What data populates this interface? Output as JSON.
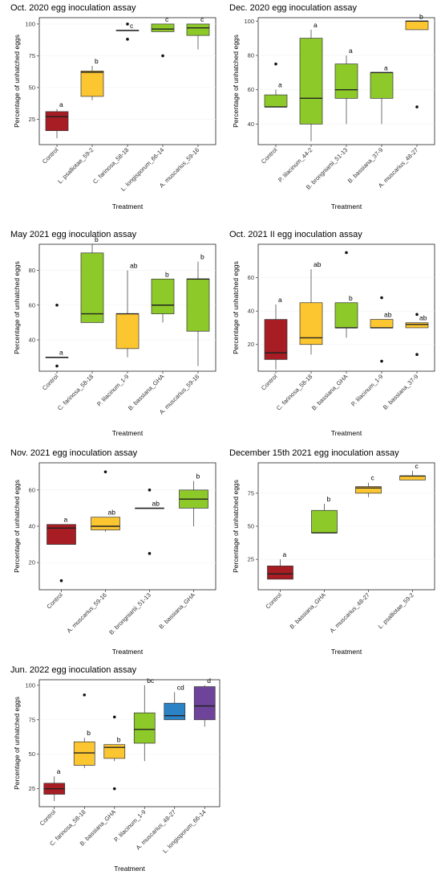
{
  "colors": {
    "red": "#a81d24",
    "yellow": "#fcc630",
    "green": "#8ec92a",
    "blue": "#2b83c6",
    "purple": "#6e449a"
  },
  "chart_data": [
    {
      "type": "boxplot",
      "title": "Oct. 2020 egg inoculation assay",
      "xlabel": "Treatment",
      "ylabel": "Percentage of unhatched eggs",
      "ylim": [
        5,
        105
      ],
      "yticks": [
        25,
        50,
        75,
        100
      ],
      "categories": [
        "Control",
        "L. psalliotae_59-2",
        "C. farinosa_58-18",
        "L. longisporum_66-14",
        "A. muscarius_59-16"
      ],
      "boxes": [
        {
          "min": 10,
          "q1": 16,
          "median": 27,
          "q3": 31,
          "max": 33,
          "outliers": [],
          "color": "red",
          "letter": "a"
        },
        {
          "min": 40,
          "q1": 43,
          "median": 62,
          "q3": 63,
          "max": 67,
          "outliers": [],
          "color": "yellow",
          "letter": "b"
        },
        {
          "min": 95,
          "q1": 95,
          "median": 95,
          "q3": 95,
          "max": 95,
          "outliers": [
            100,
            88
          ],
          "color": "yellow",
          "letter": "c"
        },
        {
          "min": 94,
          "q1": 94,
          "median": 96,
          "q3": 100,
          "max": 100,
          "outliers": [
            75
          ],
          "color": "green",
          "letter": "c"
        },
        {
          "min": 80,
          "q1": 91,
          "median": 97,
          "q3": 100,
          "max": 100,
          "outliers": [],
          "color": "green",
          "letter": "c"
        }
      ]
    },
    {
      "type": "boxplot",
      "title": "Dec. 2020 egg inoculation assay",
      "xlabel": "Treatment",
      "ylabel": "Percentage of unhatched eggs",
      "ylim": [
        28,
        102
      ],
      "yticks": [
        40,
        60,
        80,
        100
      ],
      "categories": [
        "Control",
        "P. lilacinum_44-2",
        "B. brongniartii_51-13",
        "B. bassiana_37-9",
        "A. muscarius_48-27"
      ],
      "boxes": [
        {
          "min": 50,
          "q1": 50,
          "median": 50,
          "q3": 57,
          "max": 60,
          "outliers": [
            75
          ],
          "color": "green",
          "letter": "a"
        },
        {
          "min": 30,
          "q1": 40,
          "median": 55,
          "q3": 90,
          "max": 95,
          "outliers": [],
          "color": "green",
          "letter": "a"
        },
        {
          "min": 40,
          "q1": 55,
          "median": 60,
          "q3": 75,
          "max": 80,
          "outliers": [],
          "color": "green",
          "letter": "a"
        },
        {
          "min": 40,
          "q1": 55,
          "median": 70,
          "q3": 70,
          "max": 70,
          "outliers": [],
          "color": "green",
          "letter": "a"
        },
        {
          "min": 95,
          "q1": 95,
          "median": 100,
          "q3": 100,
          "max": 100,
          "outliers": [
            50
          ],
          "color": "yellow",
          "letter": "b"
        }
      ]
    },
    {
      "type": "boxplot",
      "title": "May 2021 egg inoculation assay",
      "xlabel": "Treatment",
      "ylabel": "Percentage of unhatched eggs",
      "ylim": [
        22,
        95
      ],
      "yticks": [
        40,
        60,
        80
      ],
      "categories": [
        "Control",
        "C. farinosa_58-18",
        "P. lilacinum_1-9",
        "B. bassiana_GHA",
        "A. muscarius_59-16"
      ],
      "boxes": [
        {
          "min": 30,
          "q1": 30,
          "median": 30,
          "q3": 30,
          "max": 30,
          "outliers": [
            60,
            25
          ],
          "color": "red",
          "letter": "a"
        },
        {
          "min": 50,
          "q1": 50,
          "median": 55,
          "q3": 90,
          "max": 95,
          "outliers": [],
          "color": "green",
          "letter": "b"
        },
        {
          "min": 30,
          "q1": 35,
          "median": 55,
          "q3": 55,
          "max": 80,
          "outliers": [],
          "color": "yellow",
          "letter": "ab"
        },
        {
          "min": 50,
          "q1": 55,
          "median": 60,
          "q3": 75,
          "max": 75,
          "outliers": [],
          "color": "green",
          "letter": "b"
        },
        {
          "min": 25,
          "q1": 45,
          "median": 75,
          "q3": 75,
          "max": 85,
          "outliers": [],
          "color": "green",
          "letter": "b"
        }
      ]
    },
    {
      "type": "boxplot",
      "title": "Oct. 2021 II egg inoculation assay",
      "xlabel": "Treatment",
      "ylabel": "Percentage of unhatched eggs",
      "ylim": [
        4,
        80
      ],
      "yticks": [
        20,
        40,
        60
      ],
      "categories": [
        "Control",
        "C. farinosa_58-18",
        "B. bassiana_GHA",
        "P. lilacinum_1-9",
        "B. bassiana_37-9"
      ],
      "boxes": [
        {
          "min": 5,
          "q1": 11,
          "median": 15,
          "q3": 35,
          "max": 44,
          "outliers": [],
          "color": "red",
          "letter": "a"
        },
        {
          "min": 14,
          "q1": 20,
          "median": 24,
          "q3": 45,
          "max": 65,
          "outliers": [],
          "color": "yellow",
          "letter": "ab"
        },
        {
          "min": 24,
          "q1": 30,
          "median": 30,
          "q3": 45,
          "max": 45,
          "outliers": [
            75
          ],
          "color": "green",
          "letter": "b"
        },
        {
          "min": 30,
          "q1": 30,
          "median": 30,
          "q3": 35,
          "max": 35,
          "outliers": [
            48,
            10
          ],
          "color": "yellow",
          "letter": "ab"
        },
        {
          "min": 30,
          "q1": 30,
          "median": 32,
          "q3": 33,
          "max": 33,
          "outliers": [
            38,
            14
          ],
          "color": "yellow",
          "letter": "ab"
        }
      ]
    },
    {
      "type": "boxplot",
      "title": "Nov. 2021 egg inoculation assay",
      "xlabel": "Treatment",
      "ylabel": "Percentage of unhatched eggs",
      "ylim": [
        5,
        75
      ],
      "yticks": [
        20,
        40,
        60
      ],
      "categories": [
        "Control",
        "A. muscarius_59-16",
        "B. brongniartii_51-13",
        "B. bassiana_GHA"
      ],
      "boxes": [
        {
          "min": 30,
          "q1": 30,
          "median": 39,
          "q3": 41,
          "max": 41,
          "outliers": [
            10
          ],
          "color": "red",
          "letter": "a"
        },
        {
          "min": 37,
          "q1": 38,
          "median": 40,
          "q3": 45,
          "max": 45,
          "outliers": [
            70
          ],
          "color": "yellow",
          "letter": "ab"
        },
        {
          "min": 50,
          "q1": 50,
          "median": 50,
          "q3": 50,
          "max": 50,
          "outliers": [
            60,
            25
          ],
          "color": "yellow",
          "letter": "ab"
        },
        {
          "min": 40,
          "q1": 50,
          "median": 55,
          "q3": 60,
          "max": 65,
          "outliers": [],
          "color": "green",
          "letter": "b"
        }
      ]
    },
    {
      "type": "boxplot",
      "title": "December 15th 2021 egg inoculation assay",
      "xlabel": "Treatment",
      "ylabel": "Percentage of unhatched eggs",
      "ylim": [
        2,
        98
      ],
      "yticks": [
        25,
        50,
        75
      ],
      "categories": [
        "Control",
        "B. bassiana_GHA",
        "A. muscarius_48-27",
        "L. psalliotae_59-2"
      ],
      "boxes": [
        {
          "min": 10,
          "q1": 10,
          "median": 14,
          "q3": 20,
          "max": 25,
          "outliers": [],
          "color": "red",
          "letter": "a"
        },
        {
          "min": 45,
          "q1": 45,
          "median": 45,
          "q3": 62,
          "max": 67,
          "outliers": [],
          "color": "green",
          "letter": "b"
        },
        {
          "min": 72,
          "q1": 75,
          "median": 79,
          "q3": 80,
          "max": 83,
          "outliers": [],
          "color": "yellow",
          "letter": "c"
        },
        {
          "min": 85,
          "q1": 85,
          "median": 88,
          "q3": 88,
          "max": 92,
          "outliers": [],
          "color": "yellow",
          "letter": "c"
        }
      ]
    },
    {
      "type": "boxplot",
      "title": "Jun. 2022 egg inoculation assay",
      "xlabel": "Treatment",
      "ylabel": "Percentage of unhatched eggs",
      "ylim": [
        12,
        104
      ],
      "yticks": [
        25,
        50,
        75,
        100
      ],
      "categories": [
        "Control",
        "C. farinosa_58-18",
        "B. bassiana_GHA",
        "P. lilacinum_1-9",
        "A. muscarius_48-27",
        "L. longisporum_66-14"
      ],
      "boxes": [
        {
          "min": 16,
          "q1": 21,
          "median": 25,
          "q3": 29,
          "max": 34,
          "outliers": [],
          "color": "red",
          "letter": "a"
        },
        {
          "min": 40,
          "q1": 42,
          "median": 51,
          "q3": 59,
          "max": 62,
          "outliers": [
            93
          ],
          "color": "yellow",
          "letter": "b"
        },
        {
          "min": 45,
          "q1": 47,
          "median": 55,
          "q3": 57,
          "max": 57,
          "outliers": [
            77,
            25
          ],
          "color": "yellow",
          "letter": "b"
        },
        {
          "min": 45,
          "q1": 58,
          "median": 68,
          "q3": 80,
          "max": 100,
          "outliers": [],
          "color": "green",
          "letter": "bc"
        },
        {
          "min": 75,
          "q1": 75,
          "median": 78,
          "q3": 87,
          "max": 95,
          "outliers": [],
          "color": "blue",
          "letter": "cd"
        },
        {
          "min": 70,
          "q1": 75,
          "median": 85,
          "q3": 99,
          "max": 100,
          "outliers": [],
          "color": "purple",
          "letter": "d"
        }
      ]
    }
  ]
}
